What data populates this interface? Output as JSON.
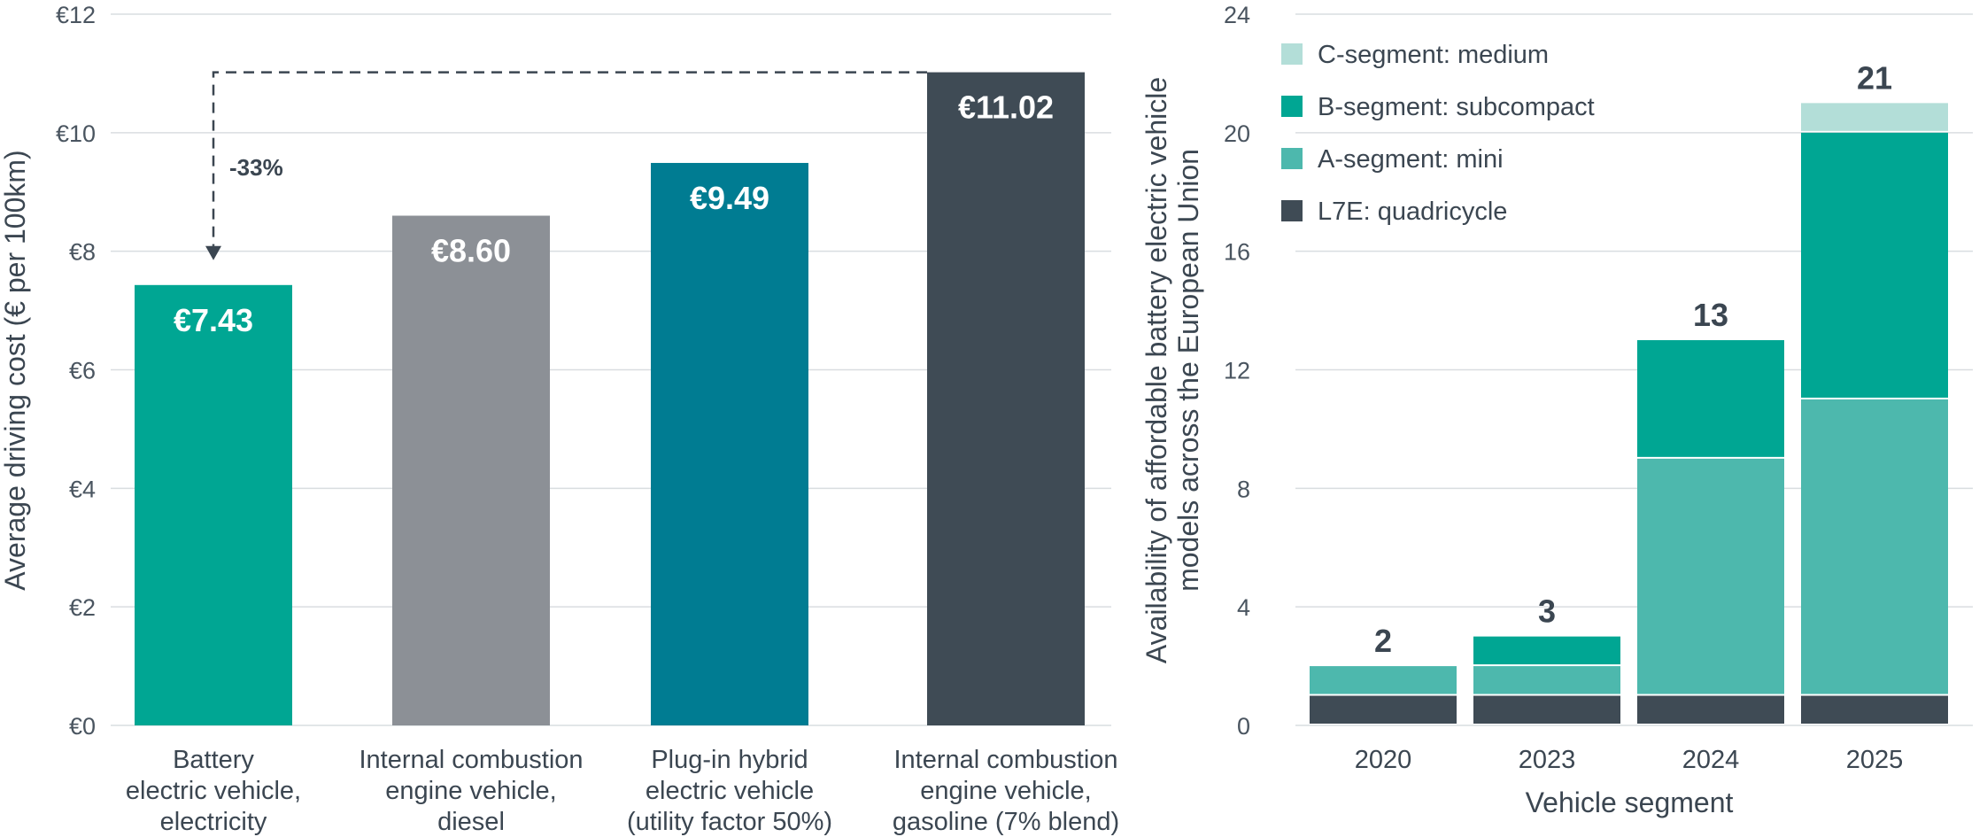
{
  "chart_data": [
    {
      "type": "bar",
      "ylabel": "Average driving cost (€ per 100km)",
      "ylim": [
        0,
        12
      ],
      "yticks": [
        "€0",
        "€2",
        "€4",
        "€6",
        "€8",
        "€10",
        "€12"
      ],
      "categories": [
        [
          "Battery",
          "electric vehicle,",
          "electricity"
        ],
        [
          "Internal combustion",
          "engine vehicle,",
          "diesel"
        ],
        [
          "Plug-in hybrid",
          "electric vehicle",
          "(utility factor 50%)"
        ],
        [
          "Internal combustion",
          "engine vehicle,",
          "gasoline (7% blend)"
        ]
      ],
      "values": [
        7.43,
        8.6,
        9.49,
        11.02
      ],
      "value_labels": [
        "€7.43",
        "€8.60",
        "€9.49",
        "€11.02"
      ],
      "colors": [
        "#00a693",
        "#8c9096",
        "#007c92",
        "#3f4b55"
      ],
      "annotation": {
        "text": "-33%",
        "from_category": 3,
        "to_category": 0
      },
      "grid": true
    },
    {
      "type": "bar",
      "stacked": true,
      "xlabel": "Vehicle segment",
      "ylabel_lines": [
        "Availability of affordable battery electric vehicle",
        "models across the European Union"
      ],
      "ylim": [
        0,
        24
      ],
      "yticks": [
        "0",
        "4",
        "8",
        "12",
        "16",
        "20",
        "24"
      ],
      "categories": [
        "2020",
        "2023",
        "2024",
        "2025"
      ],
      "series": [
        {
          "name": "L7E: quadricycle",
          "values": [
            1,
            1,
            1,
            1
          ],
          "color": "#3f4b55"
        },
        {
          "name": "A-segment: mini",
          "values": [
            1,
            1,
            8,
            10
          ],
          "color": "#4db8ad"
        },
        {
          "name": "B-segment: subcompact",
          "values": [
            0,
            1,
            4,
            9
          ],
          "color": "#00a693"
        },
        {
          "name": "C-segment: medium",
          "values": [
            0,
            0,
            0,
            1
          ],
          "color": "#b3ded8"
        }
      ],
      "totals": [
        "2",
        "3",
        "13",
        "21"
      ],
      "legend_position": "top-left",
      "grid": true
    }
  ]
}
